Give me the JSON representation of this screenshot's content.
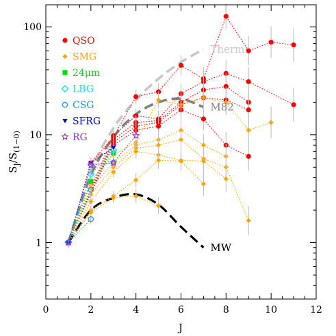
{
  "chart_data": {
    "type": "line",
    "xlabel": "J",
    "ylabel": "S_J/S_(1−0)",
    "ylabel_main": "S",
    "ylabel_sub1": "J",
    "ylabel_slash": "/S",
    "ylabel_sub2": "(1−0)",
    "xlim": [
      0,
      12
    ],
    "ylim": [
      0.3,
      160
    ],
    "yscale": "log",
    "x_ticks": [
      0,
      2,
      4,
      6,
      8,
      10,
      12
    ],
    "x_tick_labels": [
      "0",
      "2",
      "4",
      "6",
      "8",
      "10",
      "12"
    ],
    "y_ticks": [
      1,
      10,
      100
    ],
    "y_tick_labels": [
      "1",
      "10",
      "100"
    ],
    "grid": false,
    "legend_position": "top-left",
    "legend": [
      {
        "label": "QSO",
        "color": "#ff0000",
        "marker": "circle"
      },
      {
        "label": "SMG",
        "color": "#ffa500",
        "marker": "diamond"
      },
      {
        "label": "24μm",
        "color": "#00dd00",
        "marker": "square"
      },
      {
        "label": "LBG",
        "color": "#00e5ee",
        "marker": "diamond-open"
      },
      {
        "label": "CSG",
        "color": "#1e90ff",
        "marker": "circle-open"
      },
      {
        "label": "SFRG",
        "color": "#0000dd",
        "marker": "triangle-down"
      },
      {
        "label": "RG",
        "color": "#9933cc",
        "marker": "star"
      }
    ],
    "models": [
      {
        "name": "Therm.",
        "color": "#c8c8c8",
        "dash": "dashed",
        "x": [
          1,
          2,
          3,
          4,
          5,
          6,
          7
        ],
        "y": [
          1,
          4.6,
          11.5,
          21,
          33,
          47,
          62
        ]
      },
      {
        "name": "M82",
        "color": "#808080",
        "dash": "dashed",
        "x": [
          1,
          2,
          3,
          4,
          5,
          6,
          7
        ],
        "y": [
          1,
          4.2,
          9.5,
          15.5,
          20,
          21.5,
          18
        ]
      },
      {
        "name": "MW",
        "color": "#000000",
        "dash": "dashed",
        "x": [
          1,
          2,
          3,
          4,
          5,
          6,
          7
        ],
        "y": [
          1,
          2,
          2.6,
          2.8,
          2.25,
          1.4,
          0.9
        ]
      }
    ],
    "series": [
      {
        "type": "QSO",
        "x": [
          1,
          2,
          3,
          4,
          5,
          6,
          7,
          8,
          9,
          10,
          11
        ],
        "y": [
          1,
          5.5,
          9.5,
          22.5,
          25,
          44,
          33,
          125,
          60,
          72,
          68
        ]
      },
      {
        "type": "QSO",
        "x": [
          1,
          3,
          4,
          5,
          6,
          7,
          8,
          9,
          11
        ],
        "y": [
          1,
          9.8,
          15,
          14,
          24,
          31,
          37,
          31,
          19
        ]
      },
      {
        "type": "QSO",
        "x": [
          1,
          3,
          4,
          5,
          6,
          7,
          8,
          9
        ],
        "y": [
          1,
          9,
          13,
          13.5,
          20,
          26,
          28,
          20
        ]
      },
      {
        "type": "QSO",
        "x": [
          1,
          3,
          4,
          5,
          6,
          7,
          8,
          9
        ],
        "y": [
          1,
          8.5,
          12,
          13,
          19,
          22,
          21,
          17
        ]
      },
      {
        "type": "QSO",
        "x": [
          1,
          3,
          4,
          5,
          6,
          7,
          8,
          9
        ],
        "y": [
          1,
          8,
          11,
          12,
          17,
          14,
          8,
          6.3
        ]
      },
      {
        "type": "SMG",
        "x": [
          1,
          2,
          3,
          4,
          5,
          6,
          7,
          8,
          9,
          10
        ],
        "y": [
          1,
          3.5,
          6.5,
          8.5,
          21,
          19,
          22,
          20,
          11,
          13
        ]
      },
      {
        "type": "SMG",
        "x": [
          1,
          2,
          3,
          4,
          5,
          6,
          7,
          8
        ],
        "y": [
          1,
          3.2,
          5.5,
          8,
          9,
          11,
          8,
          6.3
        ]
      },
      {
        "type": "SMG",
        "x": [
          1,
          2,
          3,
          4,
          5,
          6,
          7,
          8,
          9
        ],
        "y": [
          1,
          2.8,
          5,
          7.5,
          8,
          9,
          6,
          5,
          1.6
        ]
      },
      {
        "type": "SMG",
        "x": [
          1,
          2,
          3,
          4,
          5,
          6,
          7,
          8
        ],
        "y": [
          1,
          2.4,
          4.5,
          7,
          6.5,
          5.8,
          5.7,
          3.9
        ]
      },
      {
        "type": "SMG",
        "x": [
          1,
          2,
          3,
          4,
          5,
          6,
          7
        ],
        "y": [
          1,
          2,
          2.7,
          3.8,
          5.8,
          5.7,
          3.5
        ]
      },
      {
        "type": "SMG",
        "x": [
          1,
          2,
          3,
          4,
          5
        ],
        "y": [
          1,
          1.9,
          2.6,
          2.7,
          2.2
        ]
      },
      {
        "type": "24μm",
        "x": [
          1,
          2,
          3
        ],
        "y": [
          1,
          3.7,
          6.8
        ]
      },
      {
        "type": "LBG",
        "x": [
          1,
          2,
          3
        ],
        "y": [
          1,
          4.3,
          7.2
        ]
      },
      {
        "type": "CSG",
        "x": [
          1,
          2
        ],
        "y": [
          1,
          3.1
        ]
      },
      {
        "type": "CSG",
        "x": [
          1,
          2
        ],
        "y": [
          1,
          1.65
        ]
      },
      {
        "type": "CSG",
        "x": [
          1,
          2,
          3
        ],
        "y": [
          1,
          5.3,
          5.5
        ]
      },
      {
        "type": "SFRG",
        "x": [
          1,
          2,
          3
        ],
        "y": [
          1,
          5.5,
          7.6
        ]
      },
      {
        "type": "RG",
        "x": [
          1,
          2,
          3,
          4
        ],
        "y": [
          1,
          5.2,
          5.5,
          9.8
        ]
      }
    ]
  }
}
